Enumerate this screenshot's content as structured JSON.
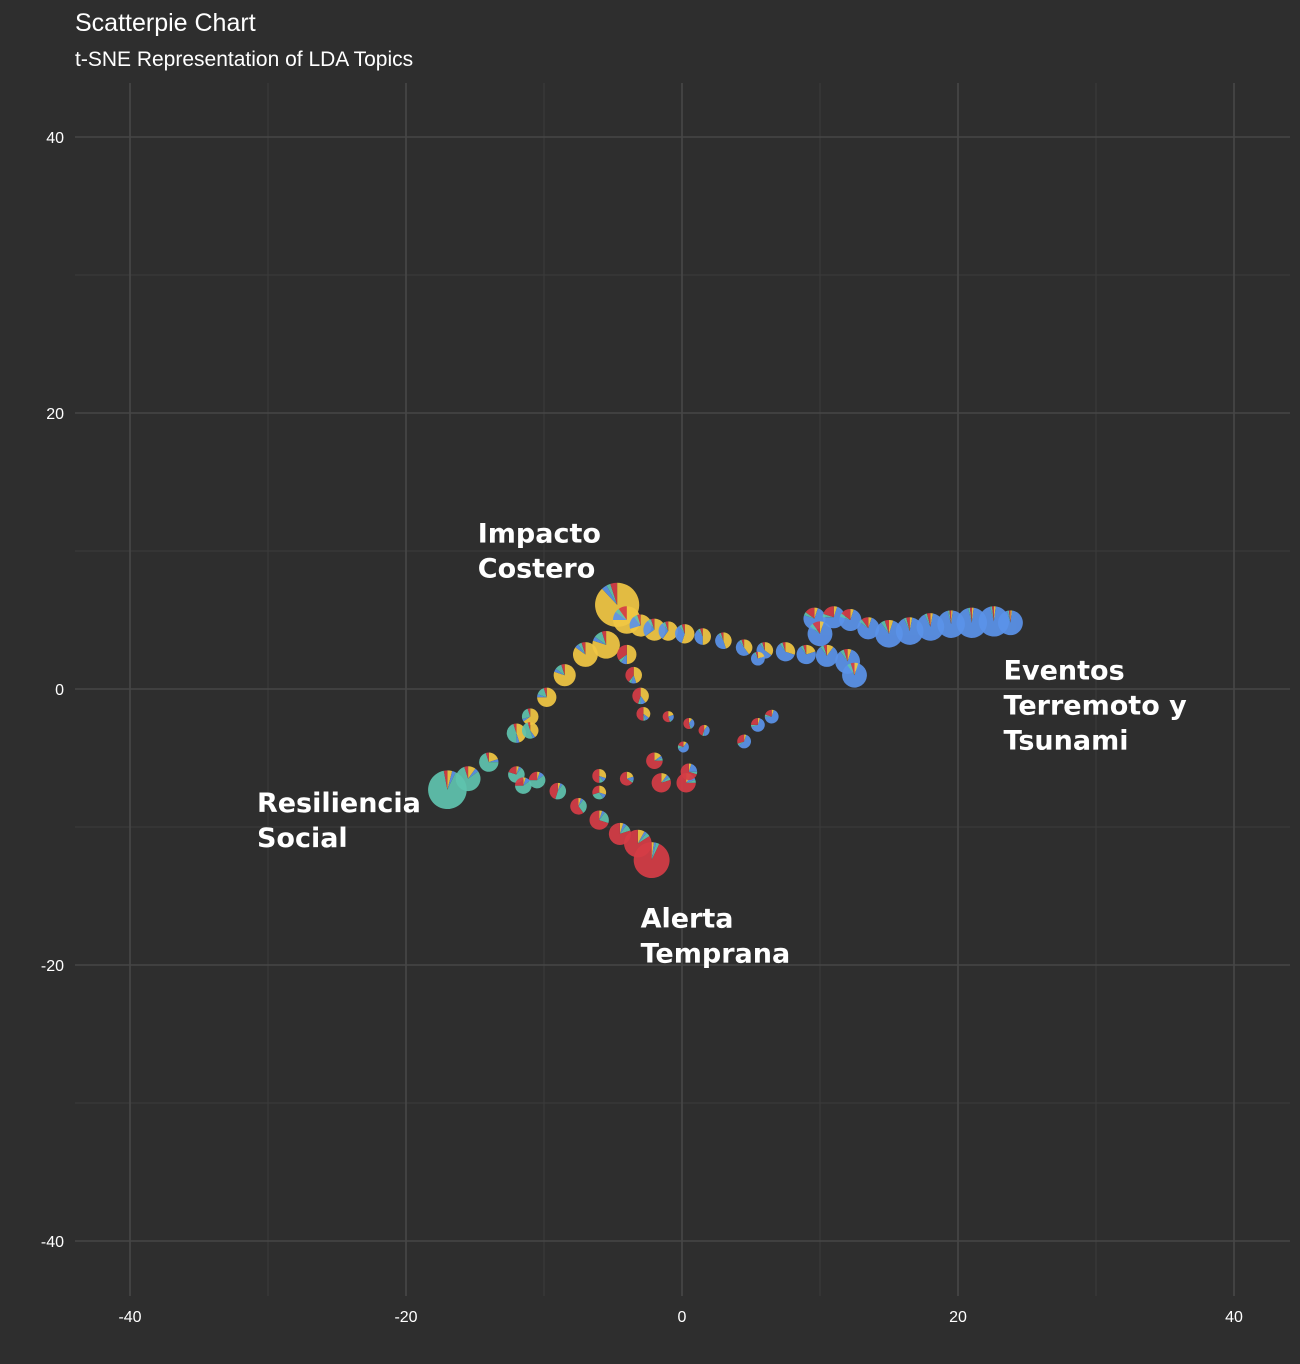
{
  "chart_data": {
    "type": "scatter",
    "subtype": "scatterpie",
    "title": "Scatterpie Chart",
    "subtitle": "t-SNE Representation of LDA Topics",
    "xlabel": "",
    "ylabel": "",
    "xlim": [
      -44,
      44
    ],
    "ylim": [
      -44,
      44
    ],
    "x_ticks": [
      -40,
      -20,
      0,
      20,
      40
    ],
    "y_ticks": [
      -40,
      -20,
      0,
      20,
      40
    ],
    "grid": true,
    "legend": "none",
    "topic_colors": {
      "impacto": "#f2c744",
      "eventos": "#5b93ea",
      "resiliencia": "#5fc3ae",
      "alerta": "#d63d46"
    },
    "cluster_labels": [
      {
        "lines": [
          "Impacto",
          "Costero"
        ],
        "x": -14.8,
        "y": 10.6,
        "topic": "impacto"
      },
      {
        "lines": [
          "Eventos",
          "Terremoto y",
          "Tsunami"
        ],
        "x": 23.3,
        "y": 0.7,
        "topic": "eventos"
      },
      {
        "lines": [
          "Resiliencia",
          "Social"
        ],
        "x": -30.8,
        "y": -8.9,
        "topic": "resiliencia"
      },
      {
        "lines": [
          "Alerta",
          "Temprana"
        ],
        "x": -3.0,
        "y": -17.3,
        "topic": "alerta"
      }
    ],
    "points": [
      {
        "x": -4.7,
        "y": 6.1,
        "r": 1.6,
        "p": [
          0.88,
          0.04,
          0.03,
          0.05
        ]
      },
      {
        "x": -4.0,
        "y": 5.0,
        "r": 1.0,
        "p": [
          0.75,
          0.1,
          0.05,
          0.1
        ]
      },
      {
        "x": -3.0,
        "y": 4.6,
        "r": 0.8,
        "p": [
          0.7,
          0.2,
          0.05,
          0.05
        ]
      },
      {
        "x": -2.0,
        "y": 4.3,
        "r": 0.8,
        "p": [
          0.65,
          0.25,
          0.05,
          0.05
        ]
      },
      {
        "x": -1.0,
        "y": 4.2,
        "r": 0.7,
        "p": [
          0.6,
          0.3,
          0.05,
          0.05
        ]
      },
      {
        "x": 0.2,
        "y": 4.0,
        "r": 0.7,
        "p": [
          0.55,
          0.35,
          0.05,
          0.05
        ]
      },
      {
        "x": 1.5,
        "y": 3.8,
        "r": 0.6,
        "p": [
          0.5,
          0.4,
          0.05,
          0.05
        ]
      },
      {
        "x": 3.0,
        "y": 3.5,
        "r": 0.6,
        "p": [
          0.45,
          0.45,
          0.05,
          0.05
        ]
      },
      {
        "x": 4.5,
        "y": 3.0,
        "r": 0.6,
        "p": [
          0.4,
          0.5,
          0.05,
          0.05
        ]
      },
      {
        "x": 6.0,
        "y": 2.8,
        "r": 0.6,
        "p": [
          0.35,
          0.55,
          0.05,
          0.05
        ]
      },
      {
        "x": 7.5,
        "y": 2.7,
        "r": 0.7,
        "p": [
          0.3,
          0.6,
          0.05,
          0.05
        ]
      },
      {
        "x": 9.0,
        "y": 2.5,
        "r": 0.7,
        "p": [
          0.2,
          0.7,
          0.05,
          0.05
        ]
      },
      {
        "x": 10.5,
        "y": 2.4,
        "r": 0.8,
        "p": [
          0.1,
          0.8,
          0.05,
          0.05
        ]
      },
      {
        "x": 12.0,
        "y": 2.0,
        "r": 0.9,
        "p": [
          0.05,
          0.85,
          0.05,
          0.05
        ]
      },
      {
        "x": 12.5,
        "y": 1.0,
        "r": 0.9,
        "p": [
          0.05,
          0.85,
          0.05,
          0.05
        ]
      },
      {
        "x": 9.6,
        "y": 5.1,
        "r": 0.8,
        "p": [
          0.05,
          0.75,
          0.05,
          0.15
        ]
      },
      {
        "x": 11.0,
        "y": 5.2,
        "r": 0.8,
        "p": [
          0.05,
          0.7,
          0.05,
          0.2
        ]
      },
      {
        "x": 12.2,
        "y": 5.0,
        "r": 0.8,
        "p": [
          0.05,
          0.75,
          0.05,
          0.15
        ]
      },
      {
        "x": 13.5,
        "y": 4.4,
        "r": 0.8,
        "p": [
          0.05,
          0.8,
          0.05,
          0.1
        ]
      },
      {
        "x": 10.0,
        "y": 4.0,
        "r": 0.9,
        "p": [
          0.05,
          0.8,
          0.05,
          0.1
        ]
      },
      {
        "x": 15.0,
        "y": 4.0,
        "r": 1.0,
        "p": [
          0.05,
          0.85,
          0.05,
          0.05
        ]
      },
      {
        "x": 16.5,
        "y": 4.2,
        "r": 1.0,
        "p": [
          0.03,
          0.9,
          0.03,
          0.04
        ]
      },
      {
        "x": 18.0,
        "y": 4.5,
        "r": 1.0,
        "p": [
          0.03,
          0.9,
          0.03,
          0.04
        ]
      },
      {
        "x": 19.5,
        "y": 4.7,
        "r": 1.0,
        "p": [
          0.02,
          0.94,
          0.02,
          0.02
        ]
      },
      {
        "x": 21.0,
        "y": 4.8,
        "r": 1.1,
        "p": [
          0.02,
          0.94,
          0.02,
          0.02
        ]
      },
      {
        "x": 22.6,
        "y": 4.9,
        "r": 1.1,
        "p": [
          0.02,
          0.94,
          0.02,
          0.02
        ]
      },
      {
        "x": 23.8,
        "y": 4.8,
        "r": 0.9,
        "p": [
          0.02,
          0.94,
          0.02,
          0.02
        ]
      },
      {
        "x": -5.5,
        "y": 3.2,
        "r": 1.0,
        "p": [
          0.8,
          0.05,
          0.1,
          0.05
        ]
      },
      {
        "x": -7.0,
        "y": 2.5,
        "r": 0.9,
        "p": [
          0.85,
          0.05,
          0.05,
          0.05
        ]
      },
      {
        "x": -8.5,
        "y": 1.0,
        "r": 0.8,
        "p": [
          0.8,
          0.05,
          0.1,
          0.05
        ]
      },
      {
        "x": -9.8,
        "y": -0.6,
        "r": 0.7,
        "p": [
          0.75,
          0.05,
          0.15,
          0.05
        ]
      },
      {
        "x": -11.0,
        "y": -2.0,
        "r": 0.6,
        "p": [
          0.65,
          0.05,
          0.25,
          0.05
        ]
      },
      {
        "x": -12.0,
        "y": -3.2,
        "r": 0.7,
        "p": [
          0.45,
          0.05,
          0.45,
          0.05
        ]
      },
      {
        "x": -11.0,
        "y": -3.0,
        "r": 0.6,
        "p": [
          0.4,
          0.05,
          0.5,
          0.05
        ]
      },
      {
        "x": -4.0,
        "y": 2.5,
        "r": 0.7,
        "p": [
          0.5,
          0.1,
          0.05,
          0.35
        ]
      },
      {
        "x": -3.5,
        "y": 1.0,
        "r": 0.6,
        "p": [
          0.45,
          0.1,
          0.05,
          0.4
        ]
      },
      {
        "x": -3.0,
        "y": -0.5,
        "r": 0.6,
        "p": [
          0.4,
          0.1,
          0.05,
          0.45
        ]
      },
      {
        "x": -2.8,
        "y": -1.8,
        "r": 0.5,
        "p": [
          0.35,
          0.1,
          0.05,
          0.5
        ]
      },
      {
        "x": -1.0,
        "y": -2.0,
        "r": 0.4,
        "p": [
          0.2,
          0.2,
          0.05,
          0.55
        ]
      },
      {
        "x": 0.5,
        "y": -2.5,
        "r": 0.4,
        "p": [
          0.1,
          0.3,
          0.05,
          0.55
        ]
      },
      {
        "x": 1.6,
        "y": -3.0,
        "r": 0.4,
        "p": [
          0.1,
          0.4,
          0.05,
          0.45
        ]
      },
      {
        "x": 4.5,
        "y": -3.8,
        "r": 0.5,
        "p": [
          0.05,
          0.6,
          0.05,
          0.3
        ]
      },
      {
        "x": 5.5,
        "y": -2.6,
        "r": 0.5,
        "p": [
          0.05,
          0.65,
          0.05,
          0.25
        ]
      },
      {
        "x": 6.5,
        "y": -2.0,
        "r": 0.5,
        "p": [
          0.05,
          0.7,
          0.05,
          0.2
        ]
      },
      {
        "x": 0.1,
        "y": -4.2,
        "r": 0.4,
        "p": [
          0.1,
          0.6,
          0.1,
          0.2
        ]
      },
      {
        "x": -2.0,
        "y": -5.2,
        "r": 0.6,
        "p": [
          0.15,
          0.05,
          0.05,
          0.75
        ]
      },
      {
        "x": -1.5,
        "y": -6.8,
        "r": 0.7,
        "p": [
          0.1,
          0.05,
          0.05,
          0.8
        ]
      },
      {
        "x": 0.3,
        "y": -6.8,
        "r": 0.7,
        "p": [
          0.1,
          0.1,
          0.05,
          0.75
        ]
      },
      {
        "x": 0.5,
        "y": -6.0,
        "r": 0.6,
        "p": [
          0.05,
          0.2,
          0.05,
          0.7
        ]
      },
      {
        "x": -17.0,
        "y": -7.3,
        "r": 1.4,
        "p": [
          0.04,
          0.03,
          0.9,
          0.03
        ]
      },
      {
        "x": -15.5,
        "y": -6.5,
        "r": 0.9,
        "p": [
          0.1,
          0.05,
          0.8,
          0.05
        ]
      },
      {
        "x": -14.0,
        "y": -5.3,
        "r": 0.7,
        "p": [
          0.2,
          0.05,
          0.7,
          0.05
        ]
      },
      {
        "x": -12.0,
        "y": -6.2,
        "r": 0.6,
        "p": [
          0.05,
          0.05,
          0.7,
          0.2
        ]
      },
      {
        "x": -10.5,
        "y": -6.6,
        "r": 0.6,
        "p": [
          0.05,
          0.1,
          0.6,
          0.25
        ]
      },
      {
        "x": -11.5,
        "y": -7.0,
        "r": 0.6,
        "p": [
          0.05,
          0.1,
          0.6,
          0.25
        ]
      },
      {
        "x": -9.0,
        "y": -7.4,
        "r": 0.6,
        "p": [
          0.05,
          0.05,
          0.45,
          0.45
        ]
      },
      {
        "x": -7.5,
        "y": -8.5,
        "r": 0.6,
        "p": [
          0.05,
          0.05,
          0.3,
          0.6
        ]
      },
      {
        "x": -6.0,
        "y": -9.5,
        "r": 0.7,
        "p": [
          0.05,
          0.05,
          0.2,
          0.7
        ]
      },
      {
        "x": -4.5,
        "y": -10.5,
        "r": 0.8,
        "p": [
          0.05,
          0.05,
          0.1,
          0.8
        ]
      },
      {
        "x": -3.2,
        "y": -11.2,
        "r": 1.0,
        "p": [
          0.08,
          0.03,
          0.05,
          0.84
        ]
      },
      {
        "x": -2.2,
        "y": -12.4,
        "r": 1.3,
        "p": [
          0.02,
          0.02,
          0.03,
          0.93
        ]
      },
      {
        "x": -6.0,
        "y": -6.3,
        "r": 0.5,
        "p": [
          0.3,
          0.1,
          0.1,
          0.5
        ]
      },
      {
        "x": -4.0,
        "y": -6.5,
        "r": 0.5,
        "p": [
          0.2,
          0.1,
          0.05,
          0.65
        ]
      },
      {
        "x": -6.0,
        "y": -7.5,
        "r": 0.5,
        "p": [
          0.3,
          0.1,
          0.3,
          0.3
        ]
      },
      {
        "x": 5.5,
        "y": 2.2,
        "r": 0.5,
        "p": [
          0.2,
          0.7,
          0.05,
          0.05
        ]
      }
    ]
  }
}
